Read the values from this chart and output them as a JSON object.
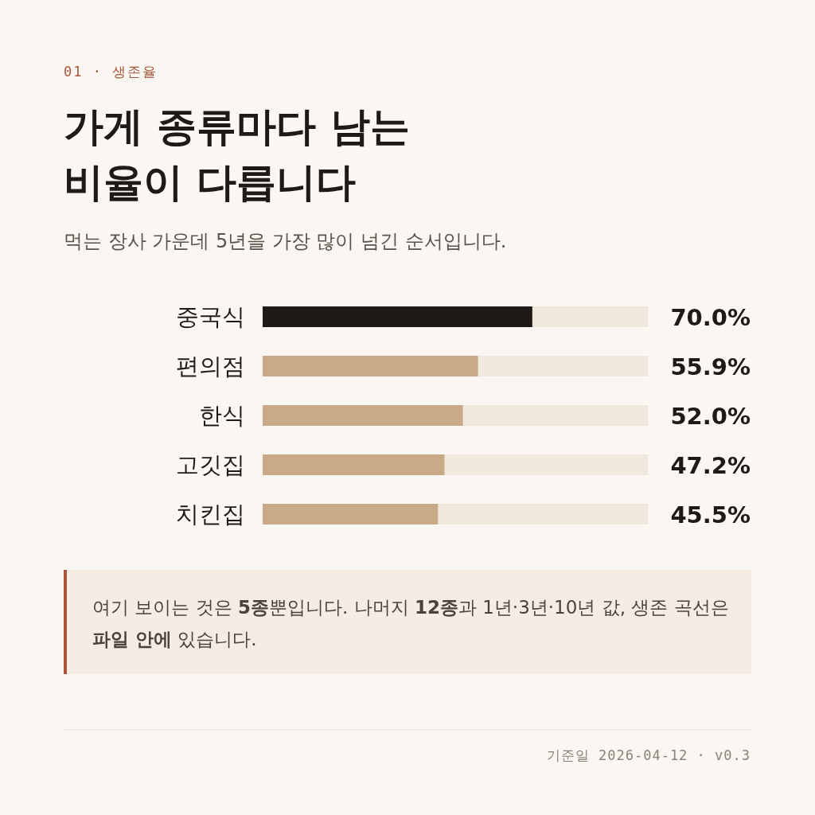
{
  "chart_data": {
    "type": "bar",
    "orientation": "horizontal",
    "title": "가게 종류마다 남는 비율이 다릅니다",
    "subtitle": "먹는 장사 가운데 5년을 가장 많이 넘긴 순서입니다.",
    "categories": [
      "중국식",
      "편의점",
      "한식",
      "고깃집",
      "치킨집"
    ],
    "values": [
      70.0,
      55.9,
      52.0,
      47.2,
      45.5
    ],
    "value_labels": [
      "70.0%",
      "55.9%",
      "52.0%",
      "47.2%",
      "45.5%"
    ],
    "colors": [
      "#1f1a17",
      "#c8aa88",
      "#c8aa88",
      "#c8aa88",
      "#c8aa88"
    ],
    "xlim": [
      0,
      100
    ],
    "annotations": [
      "01 · 생존율",
      "여기 보이는 것은 **5종**뿐입니다. 나머지 **12종**과 1년·3년·10년 값, 생존 곡선은 **파일 안에** 있습니다.",
      "기준일 2026-04-12 · v0.3"
    ]
  }
}
